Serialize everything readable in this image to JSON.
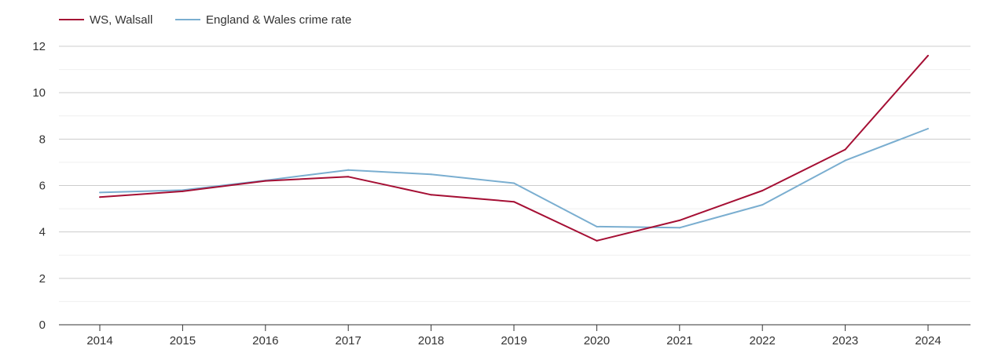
{
  "chart_data": {
    "type": "line",
    "title": "",
    "xlabel": "",
    "ylabel": "",
    "categories": [
      "2014",
      "2015",
      "2016",
      "2017",
      "2018",
      "2019",
      "2020",
      "2021",
      "2022",
      "2023",
      "2024"
    ],
    "ylim": [
      0,
      12
    ],
    "yticks": [
      0,
      2,
      4,
      6,
      8,
      10,
      12
    ],
    "grid": true,
    "legend_position": "top-left",
    "series": [
      {
        "name": "WS, Walsall",
        "color": "#a50f34",
        "values": [
          5.5,
          5.75,
          6.2,
          6.38,
          5.6,
          5.3,
          3.62,
          4.5,
          5.78,
          7.55,
          11.6
        ]
      },
      {
        "name": "England & Wales crime rate",
        "color": "#7aaed0",
        "values": [
          5.7,
          5.8,
          6.22,
          6.67,
          6.48,
          6.1,
          4.23,
          4.18,
          5.17,
          7.08,
          8.45
        ]
      }
    ]
  }
}
